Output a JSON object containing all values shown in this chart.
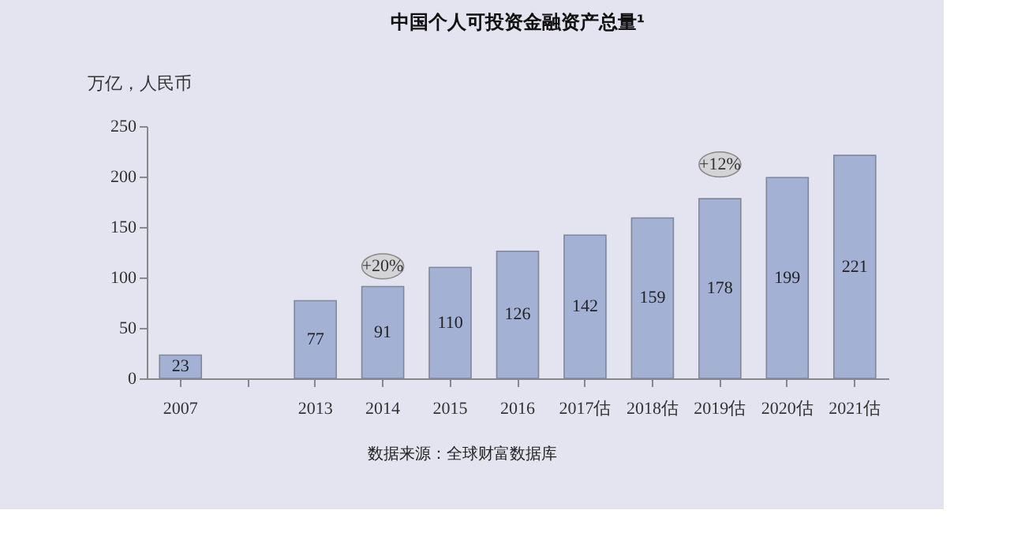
{
  "chart_data": {
    "type": "bar",
    "title": "中国个人可投资金融资产总量¹",
    "ylabel": "万亿，人民币",
    "categories": [
      "2007",
      null,
      "2013",
      "2014",
      "2015",
      "2016",
      "2017估",
      "2018估",
      "2019估",
      "2020估",
      "2021估"
    ],
    "values": [
      23,
      null,
      77,
      91,
      110,
      126,
      142,
      159,
      178,
      199,
      221
    ],
    "color": "#a3b1d4",
    "data_labels": true,
    "ylim": [
      0,
      250
    ],
    "yticks": [
      0,
      50,
      100,
      150,
      200,
      250
    ],
    "grid": false,
    "annotations": [
      {
        "text": "+20%",
        "x": "2014",
        "y": 111
      },
      {
        "text": "+12%",
        "x": "2019估",
        "y": 212
      },
      "数据来源：全球财富数据库"
    ]
  }
}
